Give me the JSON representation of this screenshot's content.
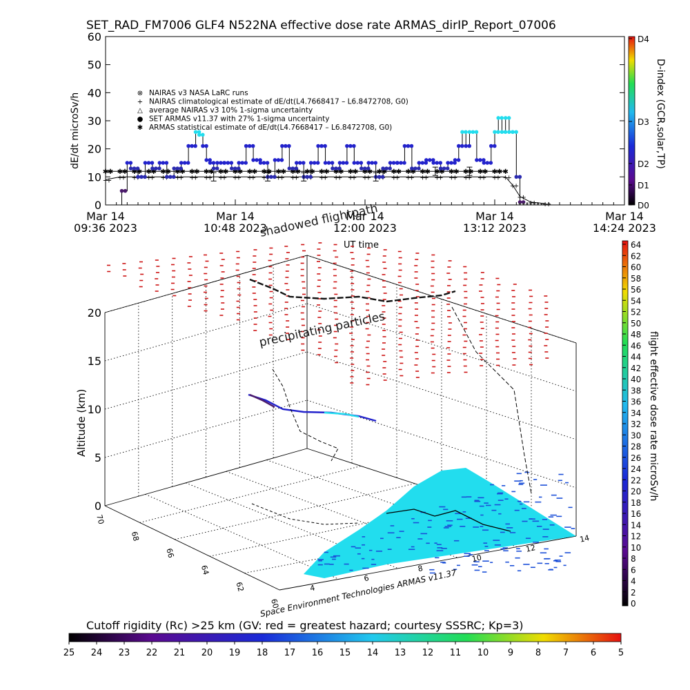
{
  "title": "SET_RAD_FM7006  GLF4 N522NA effective dose rate ARMAS_dirIP_Report_07006",
  "colors": {
    "red": "#cc1111",
    "blue": "#2222cc",
    "cyan": "#22ddee",
    "purple": "#4b1a6b"
  },
  "chart_data": [
    {
      "type": "scatter",
      "name": "top-timeseries",
      "ylabel": "dE/dt microSv/h",
      "xlabel": "UT time",
      "ylim": [
        0,
        60
      ],
      "yticks": [
        "0",
        "10",
        "20",
        "30",
        "40",
        "50",
        "60"
      ],
      "x_unit": "minutes from 09:36 UT",
      "xlim": [
        0,
        288
      ],
      "xticks": [
        {
          "x": 0,
          "date": "Mar 14",
          "time": "09:36 2023"
        },
        {
          "x": 72,
          "date": "Mar 14",
          "time": "10:48 2023"
        },
        {
          "x": 144,
          "date": "Mar 14",
          "time": "12:00 2023"
        },
        {
          "x": 216,
          "date": "Mar 14",
          "time": "13:12 2023"
        },
        {
          "x": 288,
          "date": "Mar 14",
          "time": "14:24 2023"
        }
      ],
      "legend": [
        {
          "symbol": "⊗",
          "label": "NAIRAS v3 NASA LaRC runs"
        },
        {
          "symbol": "+",
          "label": "NAIRAS climatological estimate of dE/dt(L4.7668417 – L6.8472708, G0)"
        },
        {
          "symbol": "△",
          "label": "average NAIRAS v3 10% 1-sigma uncertainty"
        },
        {
          "symbol": "●",
          "label": "SET ARMAS v11.37 with 27% 1-sigma uncertainty"
        },
        {
          "symbol": "✱",
          "label": "ARMAS statistical estimate of dE/dt(L4.7668417 – L6.8472708, G0)"
        }
      ],
      "series": [
        {
          "name": "SET ARMAS v11.37 with 27% 1-sigma uncertainty",
          "x": [
            0,
            6,
            9,
            12,
            14,
            18,
            22,
            26,
            30,
            34,
            38,
            42,
            46,
            50,
            52,
            54,
            56,
            58,
            60,
            62,
            66,
            70,
            74,
            78,
            82,
            86,
            90,
            94,
            98,
            102,
            106,
            110,
            114,
            118,
            122,
            126,
            130,
            134,
            138,
            142,
            146,
            150,
            154,
            158,
            162,
            166,
            170,
            174,
            178,
            182,
            186,
            190,
            194,
            196,
            198,
            200,
            202,
            206,
            210,
            214,
            216,
            218,
            220,
            222,
            224,
            226,
            228,
            230
          ],
          "y": [
            0,
            0,
            5,
            15,
            13,
            10,
            15,
            13,
            15,
            10,
            13,
            15,
            21,
            26,
            25,
            21,
            16,
            15,
            13,
            15,
            15,
            13,
            15,
            21,
            16,
            15,
            10,
            16,
            21,
            13,
            15,
            10,
            15,
            21,
            15,
            13,
            15,
            21,
            15,
            13,
            15,
            10,
            13,
            15,
            15,
            21,
            13,
            15,
            16,
            15,
            13,
            15,
            16,
            21,
            26,
            21,
            26,
            16,
            15,
            21,
            26,
            31,
            26,
            31,
            26,
            26,
            10,
            1
          ]
        },
        {
          "name": "NAIRAS climatological estimate of dE/dt(L4.7668417 – L6.8472708, G0)",
          "x": [
            0,
            8,
            16,
            24,
            32,
            40,
            48,
            56,
            64,
            72,
            80,
            88,
            96,
            104,
            112,
            120,
            128,
            136,
            144,
            152,
            160,
            168,
            176,
            184,
            192,
            200,
            208,
            216,
            222,
            226,
            230,
            236,
            244
          ],
          "y": [
            9,
            10,
            10,
            10,
            10,
            10,
            10,
            10,
            10,
            10,
            10,
            10,
            10,
            10,
            10,
            10,
            10,
            10,
            10,
            10,
            10,
            10,
            10,
            10,
            10,
            10,
            10,
            10,
            10,
            7,
            3,
            1,
            0.5
          ]
        },
        {
          "name": "ARMAS statistical estimate of dE/dt(L4.7668417 – L6.8472708, G0)",
          "x": [
            0,
            8,
            16,
            24,
            32,
            40,
            48,
            56,
            64,
            72,
            80,
            88,
            96,
            104,
            112,
            120,
            128,
            136,
            144,
            152,
            160,
            168,
            176,
            184,
            192,
            200,
            208,
            216,
            222
          ],
          "y": [
            12,
            12,
            12,
            12,
            12,
            12,
            12,
            12,
            12,
            12,
            12,
            12,
            12,
            12,
            12,
            12,
            12,
            12,
            12,
            12,
            12,
            12,
            12,
            12,
            12,
            12,
            12,
            12,
            12
          ]
        }
      ],
      "right_axis": {
        "label": "D-index (GCR,solar,TP)",
        "ticks": [
          "D0",
          "D1",
          "D2",
          "D3",
          "D4"
        ]
      }
    },
    {
      "type": "3d-scatter",
      "name": "altitude-flightpath",
      "zlabel": "Altitude (km)",
      "zlim": [
        0,
        20
      ],
      "zticks": [
        "0",
        "5",
        "10",
        "15",
        "20"
      ],
      "lat_ticks": [
        "70",
        "68",
        "66",
        "64",
        "62",
        "60"
      ],
      "lon_ticks": [
        "4",
        "6",
        "8",
        "10",
        "12",
        "14"
      ],
      "annotations": [
        "shadowed flightpath",
        "precipitating particles"
      ],
      "credit": "Space Environment Technologies ARMAS v11.37",
      "colorbar": {
        "label": "flight effective dose rate microSv/h",
        "min": 0,
        "max": 64,
        "ticks": [
          "64",
          "62",
          "60",
          "58",
          "56",
          "54",
          "52",
          "50",
          "48",
          "46",
          "44",
          "42",
          "40",
          "38",
          "36",
          "34",
          "32",
          "30",
          "28",
          "26",
          "24",
          "22",
          "20",
          "18",
          "16",
          "14",
          "12",
          "10",
          "8",
          "6",
          "4",
          "2",
          "0"
        ]
      }
    },
    {
      "type": "colorbar",
      "name": "cutoff-rigidity",
      "title": "Cutoff rigidity (Rc) >25 km (GV: red = greatest hazard; courtesy SSSRC; Kp=3)",
      "ticks": [
        "25",
        "24",
        "23",
        "22",
        "21",
        "20",
        "19",
        "18",
        "17",
        "16",
        "15",
        "14",
        "13",
        "12",
        "11",
        "10",
        "9",
        "8",
        "7",
        "6",
        "5"
      ]
    }
  ]
}
